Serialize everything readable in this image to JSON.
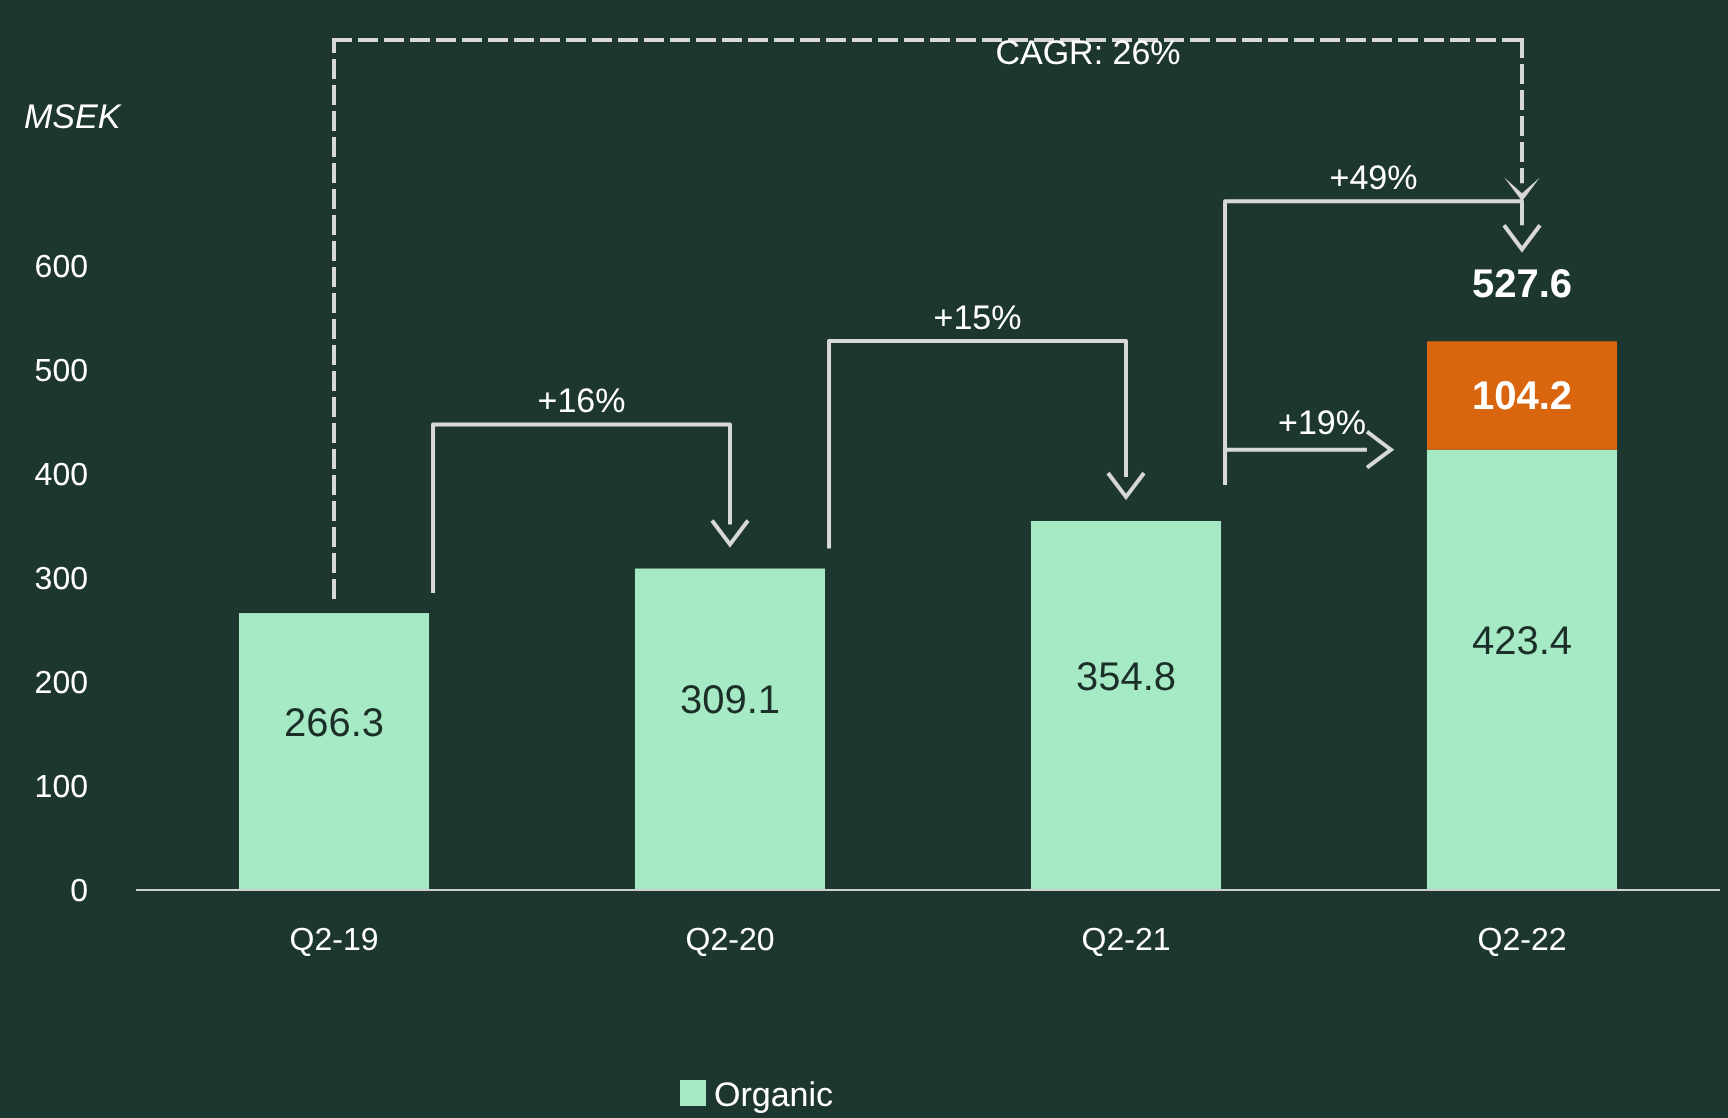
{
  "chart_data": {
    "type": "bar",
    "stacked": true,
    "ylabel": "MSEK",
    "categories": [
      "Q2-19",
      "Q2-20",
      "Q2-21",
      "Q2-22"
    ],
    "series": [
      {
        "name": "Organic",
        "color": "#a6e9c5",
        "values": [
          266.3,
          309.1,
          354.8,
          423.4
        ]
      },
      {
        "color": "#d9660f",
        "values": [
          null,
          null,
          null,
          104.2
        ]
      }
    ],
    "ylim": [
      0,
      600
    ],
    "yticks": [
      0,
      100,
      200,
      300,
      400,
      500,
      600
    ],
    "data_labels": true,
    "totals": [
      null,
      null,
      null,
      "527.6"
    ],
    "legend": "bottom",
    "annotations": [
      "CAGR: 26%",
      "+16%",
      "+15%",
      "+19%",
      "+49%"
    ]
  }
}
